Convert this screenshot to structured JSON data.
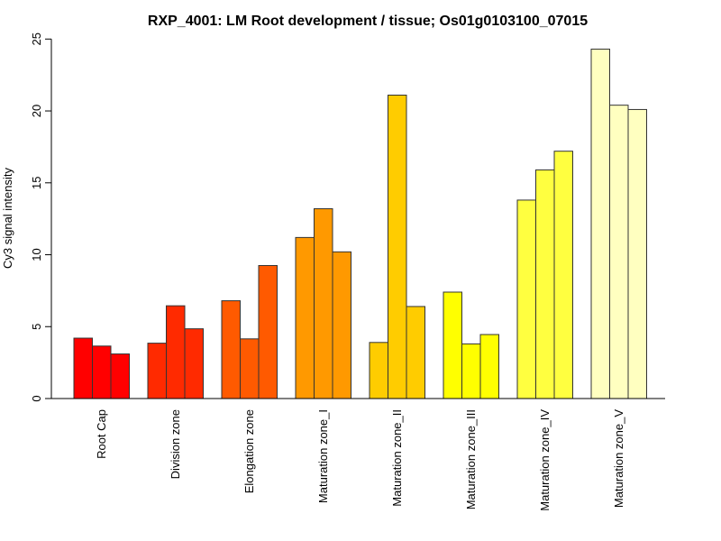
{
  "chart_data": {
    "type": "bar",
    "title": "RXP_4001: LM Root development / tissue; Os01g0103100_07015",
    "xlabel": "",
    "ylabel": "Cy3 signal intensity",
    "ylim": [
      0,
      25
    ],
    "yticks": [
      "0",
      "5",
      "10",
      "15",
      "20",
      "25"
    ],
    "grid": false,
    "categories": [
      "Root Cap",
      "Division zone",
      "Elongation zone",
      "Maturation zone_I",
      "Maturation zone_II",
      "Maturation zone_III",
      "Maturation zone_IV",
      "Maturation zone_V"
    ],
    "colors": [
      "#FF0000",
      "#FF2A00",
      "#FF5A00",
      "#FF9900",
      "#FFCC00",
      "#FFFF00",
      "#FFFF40",
      "#FFFFC0"
    ],
    "values": [
      [
        4.2,
        3.65,
        3.1
      ],
      [
        3.85,
        6.45,
        4.85
      ],
      [
        6.8,
        4.15,
        9.25
      ],
      [
        11.2,
        13.2,
        10.2
      ],
      [
        3.9,
        21.1,
        6.4
      ],
      [
        7.4,
        3.8,
        4.45
      ],
      [
        13.8,
        15.9,
        17.2
      ],
      [
        24.3,
        20.4,
        20.1
      ]
    ]
  }
}
